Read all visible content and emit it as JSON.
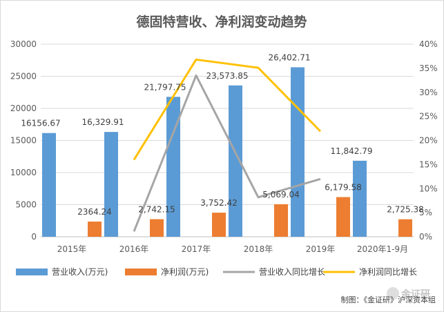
{
  "chart_data": {
    "type": "bar",
    "title": "德固特营收、净利润变动趋势",
    "categories": [
      "2015年",
      "2016年",
      "2017年",
      "2018年",
      "2019年",
      "2020年1-9月"
    ],
    "series": [
      {
        "name": "营业收入(万元)",
        "kind": "bar",
        "axis": "left",
        "color": "#5b9bd5",
        "values": [
          16156.67,
          16329.91,
          21797.75,
          23573.85,
          26402.71,
          11842.79
        ],
        "labels": [
          "16156.67",
          "16,329.91",
          "21,797.75",
          "23,573.85",
          "26,402.71",
          "11,842.79"
        ]
      },
      {
        "name": "净利润(万元)",
        "kind": "bar",
        "axis": "left",
        "color": "#ed7d31",
        "values": [
          2364.24,
          2742.15,
          3752.42,
          5069.04,
          6179.58,
          2725.38
        ],
        "labels": [
          "2364.24",
          "2,742.15",
          "3,752.42",
          "5,069.04",
          "6,179.58",
          "2,725.38"
        ]
      },
      {
        "name": "营业收入同比增长",
        "kind": "line",
        "axis": "right",
        "color": "#a5a5a5",
        "values": [
          null,
          1.1,
          33.5,
          8.2,
          12.0,
          null
        ]
      },
      {
        "name": "净利润同比增长",
        "kind": "line",
        "axis": "right",
        "color": "#ffc000",
        "values": [
          null,
          16.0,
          36.8,
          35.1,
          21.9,
          null
        ]
      }
    ],
    "y_left": {
      "min": 0,
      "max": 30000,
      "ticks": [
        "0",
        "5000",
        "10000",
        "15000",
        "20000",
        "25000",
        "30000"
      ]
    },
    "y_right": {
      "min": 0,
      "max": 40,
      "ticks": [
        "0%",
        "5%",
        "10%",
        "15%",
        "20%",
        "25%",
        "30%",
        "35%",
        "40%"
      ]
    },
    "grid": true,
    "legend_position": "bottom"
  },
  "footer": {
    "credit": "制图：《金证研》沪深资本组",
    "watermark": "金证研"
  }
}
